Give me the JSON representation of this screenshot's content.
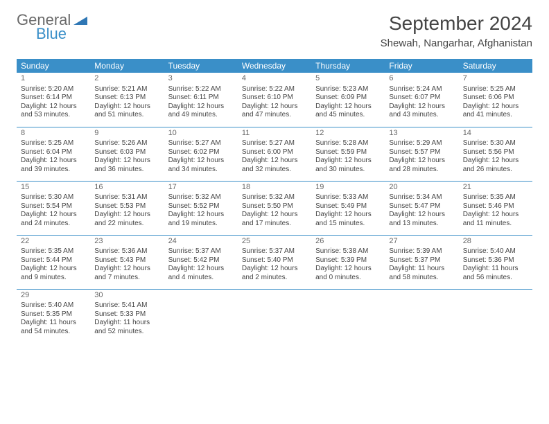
{
  "logo": {
    "word1": "General",
    "word2": "Blue"
  },
  "title": "September 2024",
  "subtitle": "Shewah, Nangarhar, Afghanistan",
  "colors": {
    "header_bg": "#3a8fc8",
    "header_text": "#ffffff",
    "body_text": "#444444",
    "rule": "#3a8fc8",
    "logo_gray": "#6a6a6a",
    "logo_blue": "#3a8fc8"
  },
  "days_of_week": [
    "Sunday",
    "Monday",
    "Tuesday",
    "Wednesday",
    "Thursday",
    "Friday",
    "Saturday"
  ],
  "weeks": [
    [
      {
        "n": "1",
        "sunrise": "Sunrise: 5:20 AM",
        "sunset": "Sunset: 6:14 PM",
        "day1": "Daylight: 12 hours",
        "day2": "and 53 minutes."
      },
      {
        "n": "2",
        "sunrise": "Sunrise: 5:21 AM",
        "sunset": "Sunset: 6:13 PM",
        "day1": "Daylight: 12 hours",
        "day2": "and 51 minutes."
      },
      {
        "n": "3",
        "sunrise": "Sunrise: 5:22 AM",
        "sunset": "Sunset: 6:11 PM",
        "day1": "Daylight: 12 hours",
        "day2": "and 49 minutes."
      },
      {
        "n": "4",
        "sunrise": "Sunrise: 5:22 AM",
        "sunset": "Sunset: 6:10 PM",
        "day1": "Daylight: 12 hours",
        "day2": "and 47 minutes."
      },
      {
        "n": "5",
        "sunrise": "Sunrise: 5:23 AM",
        "sunset": "Sunset: 6:09 PM",
        "day1": "Daylight: 12 hours",
        "day2": "and 45 minutes."
      },
      {
        "n": "6",
        "sunrise": "Sunrise: 5:24 AM",
        "sunset": "Sunset: 6:07 PM",
        "day1": "Daylight: 12 hours",
        "day2": "and 43 minutes."
      },
      {
        "n": "7",
        "sunrise": "Sunrise: 5:25 AM",
        "sunset": "Sunset: 6:06 PM",
        "day1": "Daylight: 12 hours",
        "day2": "and 41 minutes."
      }
    ],
    [
      {
        "n": "8",
        "sunrise": "Sunrise: 5:25 AM",
        "sunset": "Sunset: 6:04 PM",
        "day1": "Daylight: 12 hours",
        "day2": "and 39 minutes."
      },
      {
        "n": "9",
        "sunrise": "Sunrise: 5:26 AM",
        "sunset": "Sunset: 6:03 PM",
        "day1": "Daylight: 12 hours",
        "day2": "and 36 minutes."
      },
      {
        "n": "10",
        "sunrise": "Sunrise: 5:27 AM",
        "sunset": "Sunset: 6:02 PM",
        "day1": "Daylight: 12 hours",
        "day2": "and 34 minutes."
      },
      {
        "n": "11",
        "sunrise": "Sunrise: 5:27 AM",
        "sunset": "Sunset: 6:00 PM",
        "day1": "Daylight: 12 hours",
        "day2": "and 32 minutes."
      },
      {
        "n": "12",
        "sunrise": "Sunrise: 5:28 AM",
        "sunset": "Sunset: 5:59 PM",
        "day1": "Daylight: 12 hours",
        "day2": "and 30 minutes."
      },
      {
        "n": "13",
        "sunrise": "Sunrise: 5:29 AM",
        "sunset": "Sunset: 5:57 PM",
        "day1": "Daylight: 12 hours",
        "day2": "and 28 minutes."
      },
      {
        "n": "14",
        "sunrise": "Sunrise: 5:30 AM",
        "sunset": "Sunset: 5:56 PM",
        "day1": "Daylight: 12 hours",
        "day2": "and 26 minutes."
      }
    ],
    [
      {
        "n": "15",
        "sunrise": "Sunrise: 5:30 AM",
        "sunset": "Sunset: 5:54 PM",
        "day1": "Daylight: 12 hours",
        "day2": "and 24 minutes."
      },
      {
        "n": "16",
        "sunrise": "Sunrise: 5:31 AM",
        "sunset": "Sunset: 5:53 PM",
        "day1": "Daylight: 12 hours",
        "day2": "and 22 minutes."
      },
      {
        "n": "17",
        "sunrise": "Sunrise: 5:32 AM",
        "sunset": "Sunset: 5:52 PM",
        "day1": "Daylight: 12 hours",
        "day2": "and 19 minutes."
      },
      {
        "n": "18",
        "sunrise": "Sunrise: 5:32 AM",
        "sunset": "Sunset: 5:50 PM",
        "day1": "Daylight: 12 hours",
        "day2": "and 17 minutes."
      },
      {
        "n": "19",
        "sunrise": "Sunrise: 5:33 AM",
        "sunset": "Sunset: 5:49 PM",
        "day1": "Daylight: 12 hours",
        "day2": "and 15 minutes."
      },
      {
        "n": "20",
        "sunrise": "Sunrise: 5:34 AM",
        "sunset": "Sunset: 5:47 PM",
        "day1": "Daylight: 12 hours",
        "day2": "and 13 minutes."
      },
      {
        "n": "21",
        "sunrise": "Sunrise: 5:35 AM",
        "sunset": "Sunset: 5:46 PM",
        "day1": "Daylight: 12 hours",
        "day2": "and 11 minutes."
      }
    ],
    [
      {
        "n": "22",
        "sunrise": "Sunrise: 5:35 AM",
        "sunset": "Sunset: 5:44 PM",
        "day1": "Daylight: 12 hours",
        "day2": "and 9 minutes."
      },
      {
        "n": "23",
        "sunrise": "Sunrise: 5:36 AM",
        "sunset": "Sunset: 5:43 PM",
        "day1": "Daylight: 12 hours",
        "day2": "and 7 minutes."
      },
      {
        "n": "24",
        "sunrise": "Sunrise: 5:37 AM",
        "sunset": "Sunset: 5:42 PM",
        "day1": "Daylight: 12 hours",
        "day2": "and 4 minutes."
      },
      {
        "n": "25",
        "sunrise": "Sunrise: 5:37 AM",
        "sunset": "Sunset: 5:40 PM",
        "day1": "Daylight: 12 hours",
        "day2": "and 2 minutes."
      },
      {
        "n": "26",
        "sunrise": "Sunrise: 5:38 AM",
        "sunset": "Sunset: 5:39 PM",
        "day1": "Daylight: 12 hours",
        "day2": "and 0 minutes."
      },
      {
        "n": "27",
        "sunrise": "Sunrise: 5:39 AM",
        "sunset": "Sunset: 5:37 PM",
        "day1": "Daylight: 11 hours",
        "day2": "and 58 minutes."
      },
      {
        "n": "28",
        "sunrise": "Sunrise: 5:40 AM",
        "sunset": "Sunset: 5:36 PM",
        "day1": "Daylight: 11 hours",
        "day2": "and 56 minutes."
      }
    ],
    [
      {
        "n": "29",
        "sunrise": "Sunrise: 5:40 AM",
        "sunset": "Sunset: 5:35 PM",
        "day1": "Daylight: 11 hours",
        "day2": "and 54 minutes."
      },
      {
        "n": "30",
        "sunrise": "Sunrise: 5:41 AM",
        "sunset": "Sunset: 5:33 PM",
        "day1": "Daylight: 11 hours",
        "day2": "and 52 minutes."
      },
      null,
      null,
      null,
      null,
      null
    ]
  ]
}
